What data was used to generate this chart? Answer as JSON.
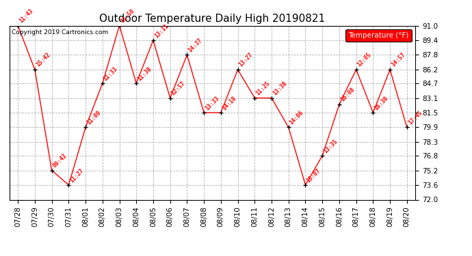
{
  "title": "Outdoor Temperature Daily High 20190821",
  "copyright": "Copyright 2019 Cartronics.com",
  "legend_label": "Temperature (°F)",
  "dates": [
    "07/28",
    "07/29",
    "07/30",
    "07/31",
    "08/01",
    "08/02",
    "08/03",
    "08/04",
    "08/05",
    "08/06",
    "08/07",
    "08/08",
    "08/09",
    "08/10",
    "08/11",
    "08/12",
    "08/13",
    "08/14",
    "08/15",
    "08/16",
    "08/17",
    "08/18",
    "08/19",
    "08/20"
  ],
  "temperatures": [
    91.0,
    86.2,
    75.2,
    73.6,
    79.9,
    84.7,
    91.0,
    84.7,
    89.4,
    83.1,
    87.8,
    81.5,
    81.5,
    86.2,
    83.1,
    83.1,
    79.9,
    73.6,
    76.8,
    82.4,
    86.2,
    81.5,
    86.2,
    79.9
  ],
  "time_labels": [
    "11:43",
    "15:42",
    "09:42",
    "11:27",
    "11:00",
    "11:33",
    "11:50",
    "11:38",
    "13:11",
    "12:57",
    "14:37",
    "13:33",
    "14:18",
    "13:27",
    "11:25",
    "13:38",
    "14:06",
    "15:07",
    "13:35",
    "16:08",
    "12:05",
    "16:30",
    "14:57",
    "17:45"
  ],
  "ylim": [
    72.0,
    91.0
  ],
  "yticks": [
    72.0,
    73.6,
    75.2,
    76.8,
    78.3,
    79.9,
    81.5,
    83.1,
    84.7,
    86.2,
    87.8,
    89.4,
    91.0
  ],
  "line_color": "red",
  "marker_color": "black",
  "label_color": "red",
  "bg_color": "white",
  "grid_color": "#b0b0b0",
  "title_fontsize": 11,
  "label_fontsize": 6.0,
  "tick_fontsize": 7.5,
  "copyright_fontsize": 6.5,
  "legend_fontsize": 7.5
}
